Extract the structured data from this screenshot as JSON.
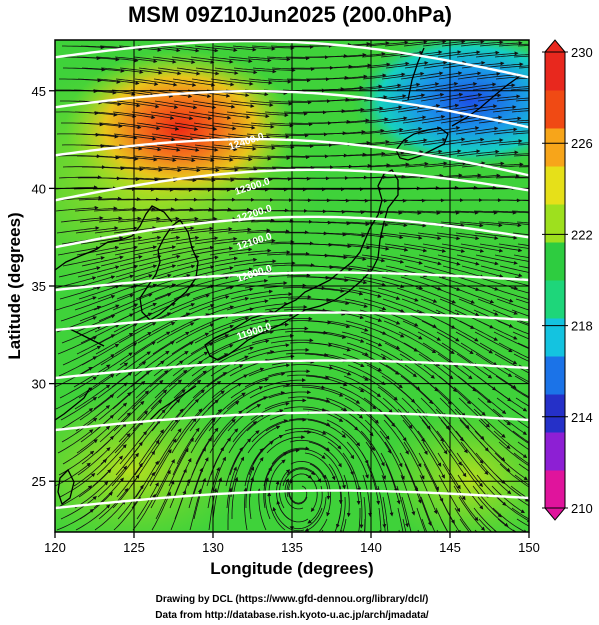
{
  "title": "MSM 09Z10Jun2025 (200.0hPa)",
  "xlabel": "Longitude (degrees)",
  "ylabel": "Latitude  (degrees)",
  "x_ticks": [
    "120",
    "125",
    "130",
    "135",
    "140",
    "145",
    "150"
  ],
  "y_ticks": [
    "25",
    "30",
    "35",
    "40",
    "45"
  ],
  "map": {
    "lon_range": [
      120,
      150
    ],
    "lat_range": [
      22.4,
      47.6
    ],
    "contour_labels": [
      "12400.0",
      "12300.0",
      "12200.0",
      "12100.0",
      "12000.0",
      "11900.0"
    ]
  },
  "colorbar": {
    "labels": [
      "230",
      "226",
      "222",
      "218",
      "214",
      "210"
    ],
    "range": [
      210,
      230
    ],
    "colors": [
      "#e0149c",
      "#8d1fd4",
      "#2530c8",
      "#1b73e8",
      "#14c3e0",
      "#1ed67a",
      "#2ecc40",
      "#9ee01e",
      "#e6e019",
      "#f7a51a",
      "#f04a14",
      "#e8281e"
    ]
  },
  "footer": {
    "line1": "Drawing by DCL (https://www.gfd-dennou.org/library/dcl/)",
    "line2": "Data from http://database.rish.kyoto-u.ac.jp/arch/jmadata/"
  }
}
